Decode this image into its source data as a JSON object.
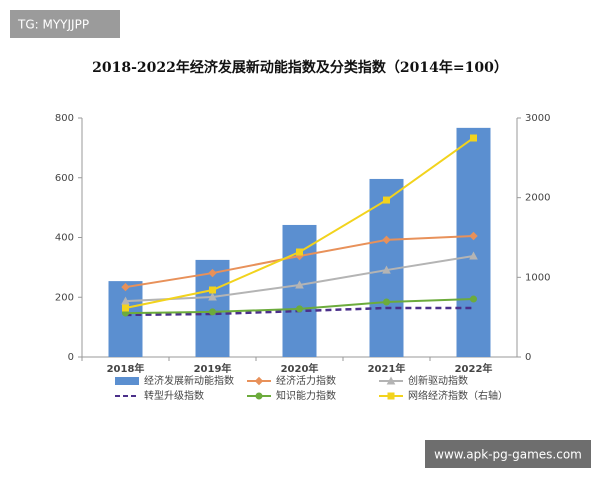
{
  "chart_data": {
    "type": "bar-line",
    "title": "2018-2022年经济发展新动能指数及分类指数（2014年=100）",
    "categories": [
      "2018年",
      "2019年",
      "2020年",
      "2021年",
      "2022年"
    ],
    "series": [
      {
        "name": "经济发展新动能指数",
        "type": "bar",
        "color": "#5b8fd0",
        "values": [
          254,
          325,
          442,
          596,
          767
        ]
      },
      {
        "name": "经济活力指数",
        "type": "line",
        "marker": "diamond",
        "color": "#e8915a",
        "values": [
          234,
          281,
          338,
          392,
          405
        ]
      },
      {
        "name": "创新驱动指数",
        "type": "line",
        "marker": "triangle",
        "color": "#b4b4b4",
        "values": [
          187,
          201,
          241,
          291,
          338
        ]
      },
      {
        "name": "转型升级指数",
        "type": "line",
        "marker": "none",
        "dashed": true,
        "color": "#4b2f8a",
        "values": [
          141,
          144,
          154,
          164,
          164
        ]
      },
      {
        "name": "知识能力指数",
        "type": "line",
        "marker": "circle",
        "color": "#6cab3c",
        "values": [
          147,
          151,
          161,
          184,
          194
        ]
      },
      {
        "name": "网络经济指数（右轴）",
        "type": "line",
        "marker": "square",
        "color": "#f2d31d",
        "axis": "y2",
        "values": [
          615,
          841,
          1318,
          1970,
          2749
        ]
      }
    ],
    "ylim": [
      0,
      800
    ],
    "yticks": [
      0,
      200,
      400,
      600,
      800
    ],
    "y2lim": [
      0,
      3000
    ],
    "y2ticks": [
      0,
      1000,
      2000,
      3000
    ],
    "grid": false
  },
  "watermarks": [
    "TG: MYYJJPP",
    "www.apk-pg-games.com"
  ]
}
